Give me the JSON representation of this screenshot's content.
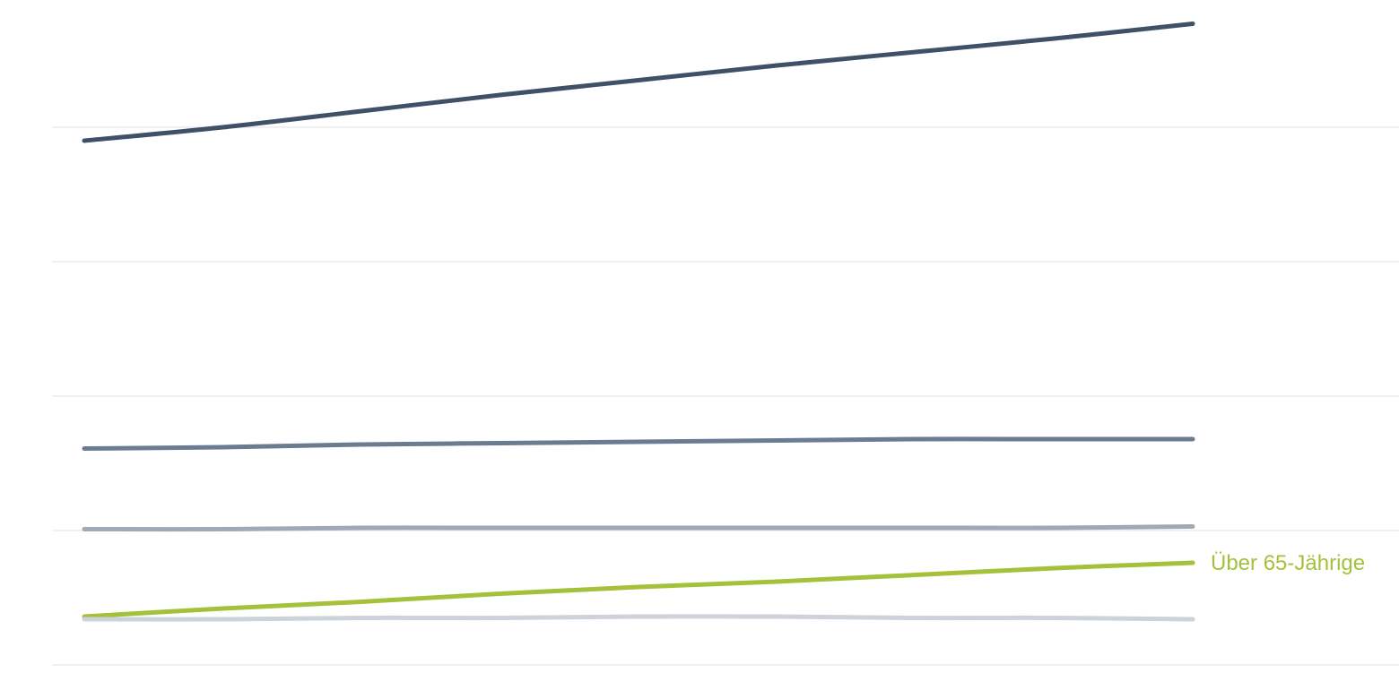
{
  "chart_data": {
    "type": "line",
    "title": "",
    "xlabel": "",
    "ylabel": "",
    "x": [
      0,
      1,
      2,
      3,
      4,
      5,
      6,
      7,
      8
    ],
    "ylim": [
      0,
      5
    ],
    "grid": true,
    "gridlines_y": [
      0,
      1,
      2,
      3,
      4
    ],
    "series": [
      {
        "values": [
          3.9,
          4.0,
          4.12,
          4.24,
          4.35,
          4.46,
          4.56,
          4.66,
          4.77
        ],
        "color": "#3f5068",
        "label_visible": false
      },
      {
        "values": [
          1.61,
          1.62,
          1.64,
          1.65,
          1.66,
          1.67,
          1.68,
          1.68,
          1.68
        ],
        "color": "#6b7b90",
        "label_visible": false
      },
      {
        "values": [
          1.01,
          1.01,
          1.02,
          1.02,
          1.02,
          1.02,
          1.02,
          1.02,
          1.03
        ],
        "color": "#a0aab6",
        "label_visible": false
      },
      {
        "name": "Über 65-Jährige",
        "values": [
          0.36,
          0.42,
          0.47,
          0.53,
          0.58,
          0.62,
          0.67,
          0.72,
          0.76
        ],
        "color": "#a5c13b",
        "label_visible": true
      },
      {
        "values": [
          0.34,
          0.34,
          0.35,
          0.35,
          0.36,
          0.36,
          0.35,
          0.35,
          0.34
        ],
        "color": "#ced3db",
        "label_visible": false
      }
    ]
  }
}
